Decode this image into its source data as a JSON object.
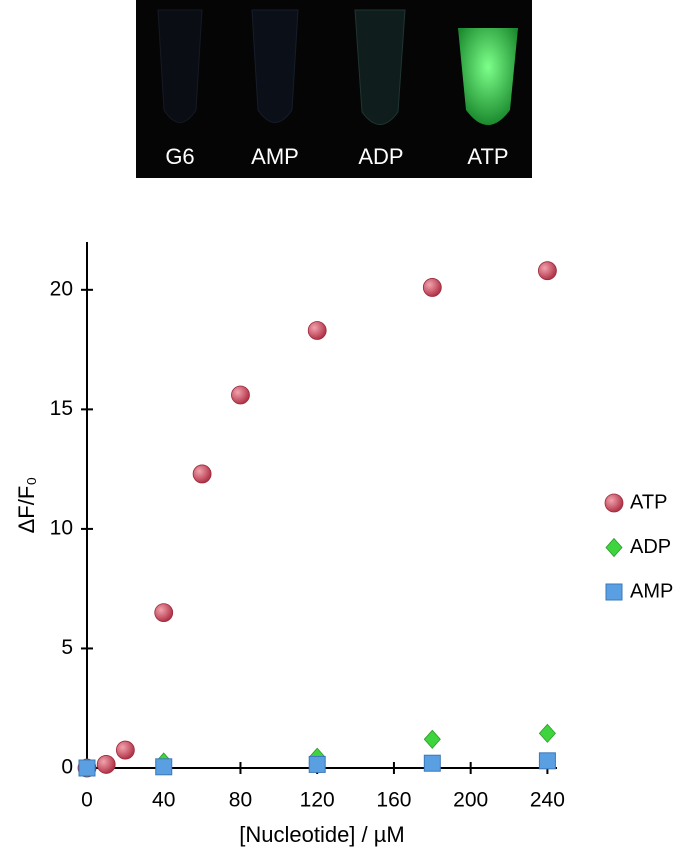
{
  "photo": {
    "labels": [
      "G6",
      "AMP",
      "ADP",
      "ATP"
    ]
  },
  "chart_data": {
    "type": "scatter",
    "xlabel": "[Nucleotide] / µM",
    "ylabel": "ΔF/F₀",
    "xlim": [
      0,
      245
    ],
    "ylim": [
      0,
      22
    ],
    "xticks": [
      0,
      40,
      80,
      120,
      160,
      200,
      240
    ],
    "yticks": [
      0,
      5,
      10,
      15,
      20
    ],
    "legend": "right",
    "series": [
      {
        "name": "ATP",
        "color": "#c94a5c",
        "marker": "circle",
        "x": [
          0,
          10,
          20,
          40,
          60,
          80,
          120,
          180,
          240
        ],
        "values": [
          0,
          0.15,
          0.75,
          6.5,
          12.3,
          15.6,
          18.3,
          20.1,
          20.8
        ]
      },
      {
        "name": "ADP",
        "color": "#3ed43e",
        "marker": "diamond",
        "x": [
          0,
          40,
          120,
          180,
          240
        ],
        "values": [
          0,
          0.25,
          0.45,
          1.2,
          1.45
        ]
      },
      {
        "name": "AMP",
        "color": "#5a9fe2",
        "marker": "square",
        "x": [
          0,
          40,
          120,
          180,
          240
        ],
        "values": [
          0,
          0.05,
          0.15,
          0.2,
          0.3
        ]
      }
    ]
  }
}
